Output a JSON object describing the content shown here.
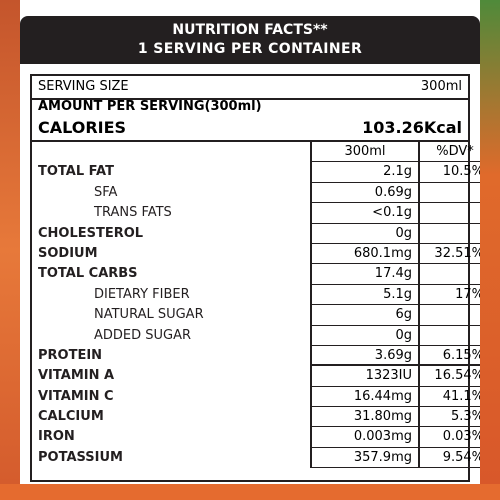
{
  "header": {
    "title": "NUTRITION FACTS**",
    "subtitle": "1 SERVING PER CONTAINER"
  },
  "serving": {
    "label": "SERVING SIZE",
    "value": "300ml"
  },
  "amount_per_serving": "AMOUNT PER SERVING(300ml)",
  "calories": {
    "label": "CALORIES",
    "value": "103.26Kcal"
  },
  "columns": {
    "amount": "300ml",
    "dv": "%DV*"
  },
  "rows": [
    {
      "name": "TOTAL FAT",
      "amount": "2.1g",
      "dv": "10.5%"
    },
    {
      "name": "SFA",
      "amount": "0.69g",
      "dv": ""
    },
    {
      "name": "TRANS FATS",
      "amount": "<0.1g",
      "dv": ""
    },
    {
      "name": "CHOLESTEROL",
      "amount": "0g",
      "dv": ""
    },
    {
      "name": "SODIUM",
      "amount": "680.1mg",
      "dv": "32.51%"
    },
    {
      "name": "TOTAL CARBS",
      "amount": "17.4g",
      "dv": ""
    },
    {
      "name": "DIETARY FIBER",
      "amount": "5.1g",
      "dv": "17%"
    },
    {
      "name": "NATURAL SUGAR",
      "amount": "6g",
      "dv": ""
    },
    {
      "name": "ADDED SUGAR",
      "amount": "0g",
      "dv": ""
    },
    {
      "name": "PROTEIN",
      "amount": "3.69g",
      "dv": "6.15%"
    },
    {
      "name": "VITAMIN A",
      "amount": "1323IU",
      "dv": "16.54%"
    },
    {
      "name": "VITAMIN C",
      "amount": "16.44mg",
      "dv": "41.1%"
    },
    {
      "name": "CALCIUM",
      "amount": "31.80mg",
      "dv": "5.3%"
    },
    {
      "name": "IRON",
      "amount": "0.003mg",
      "dv": "0.03%"
    },
    {
      "name": "POTASSIUM",
      "amount": "357.9mg",
      "dv": "9.54%"
    }
  ],
  "colors": {
    "header_bg": "#231f20",
    "header_text": "#ffffff",
    "accent_orange": "#e56b2f"
  }
}
